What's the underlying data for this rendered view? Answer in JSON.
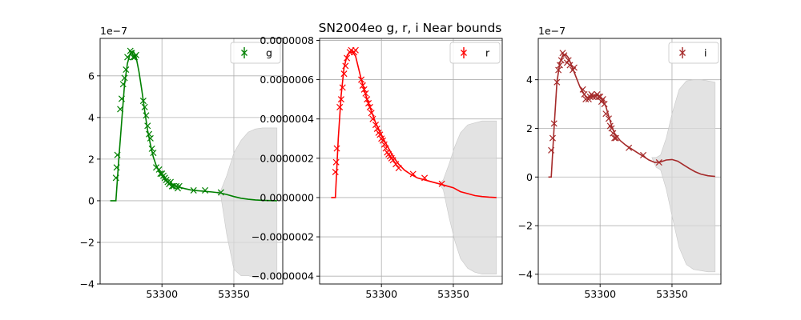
{
  "title": "SN2004eo  g, r, i Near bounds",
  "chart_data": [
    {
      "type": "line",
      "band": "g",
      "color": "#008000",
      "band_fill": "#d9d9d9",
      "offset_label": "1e−7",
      "xlim": [
        53257,
        53384
      ],
      "ylim": [
        -4,
        7.8
      ],
      "xticks": [
        53300,
        53350
      ],
      "yticks": [
        -4,
        -2,
        0,
        2,
        4,
        6
      ],
      "ytick_labels": [
        "−4",
        "−2",
        "0",
        "2",
        "4",
        "6"
      ],
      "grid": true,
      "legend": {
        "label": "g",
        "placement": "top-right"
      },
      "observations": {
        "x": [
          53268,
          53268.5,
          53269,
          53271,
          53272,
          53273,
          53274,
          53275,
          53276,
          53278,
          53279,
          53280,
          53281,
          53282,
          53287,
          53288,
          53289,
          53290,
          53291,
          53292,
          53293,
          53294,
          53296,
          53298,
          53299,
          53300,
          53301,
          53302,
          53303,
          53304,
          53305,
          53306,
          53307,
          53308,
          53310,
          53311,
          53312,
          53322,
          53330,
          53341
        ],
        "y": [
          1.1,
          1.6,
          2.2,
          4.4,
          4.9,
          5.6,
          5.9,
          6.3,
          6.9,
          7.2,
          7.1,
          6.9,
          6.9,
          7.0,
          4.8,
          4.5,
          4.1,
          3.6,
          3.2,
          3.0,
          2.5,
          2.3,
          1.6,
          1.5,
          1.3,
          1.3,
          1.2,
          1.1,
          1.0,
          0.9,
          0.8,
          0.9,
          0.7,
          0.7,
          0.7,
          0.6,
          0.7,
          0.5,
          0.5,
          0.4
        ]
      },
      "model": {
        "x": [
          53264,
          53268,
          53270,
          53272,
          53274,
          53276,
          53278,
          53280,
          53282,
          53284,
          53286,
          53288,
          53290,
          53292,
          53294,
          53296,
          53298,
          53300,
          53302,
          53305,
          53308,
          53312,
          53316,
          53320,
          53325,
          53330,
          53335,
          53340,
          53345,
          53350,
          53355,
          53360,
          53365,
          53370,
          53375,
          53380
        ],
        "y": [
          0,
          0,
          2.0,
          3.8,
          5.6,
          6.6,
          7.1,
          7.2,
          6.9,
          6.2,
          5.3,
          4.3,
          3.4,
          2.7,
          2.1,
          1.7,
          1.4,
          1.2,
          1.0,
          0.85,
          0.75,
          0.65,
          0.58,
          0.52,
          0.48,
          0.45,
          0.42,
          0.38,
          0.3,
          0.2,
          0.12,
          0.07,
          0.04,
          0.02,
          0.01,
          0.0
        ]
      },
      "uncertainty": {
        "x": [
          53338,
          53341,
          53345,
          53350,
          53355,
          53360,
          53365,
          53370,
          53375,
          53380
        ],
        "upper": [
          0.4,
          0.5,
          1.2,
          2.3,
          2.9,
          3.3,
          3.45,
          3.5,
          3.5,
          3.5
        ],
        "lower": [
          0.4,
          0.2,
          -1.6,
          -3.3,
          -3.6,
          -3.6,
          -3.7,
          -3.7,
          -3.7,
          -3.7
        ]
      }
    },
    {
      "type": "line",
      "band": "r",
      "color": "#ff0000",
      "band_fill": "#d9d9d9",
      "offset_label": "",
      "xlim": [
        53257,
        53384
      ],
      "ylim": [
        -4.4e-07,
        8.1e-07
      ],
      "xticks": [
        53300,
        53350
      ],
      "yticks": [
        -4e-07,
        -2e-07,
        0,
        2e-07,
        4e-07,
        6e-07,
        8e-07
      ],
      "ytick_labels": [
        "−0.0000004",
        "−0.0000002",
        "0.0000000",
        "0.0000002",
        "0.0000004",
        "0.0000006",
        "0.0000008"
      ],
      "grid": true,
      "legend": {
        "label": "r",
        "placement": "top-right"
      },
      "observations": {
        "x": [
          53268,
          53268.5,
          53269,
          53271,
          53272,
          53273,
          53274,
          53275,
          53276,
          53278,
          53279,
          53281,
          53282,
          53286,
          53287,
          53288,
          53289,
          53290,
          53291,
          53292,
          53293,
          53294,
          53296,
          53297,
          53298,
          53299,
          53300,
          53301,
          53302,
          53303,
          53304,
          53305,
          53306,
          53307,
          53308,
          53310,
          53312,
          53322,
          53330,
          53342
        ],
        "y": [
          1.3e-07,
          1.8e-07,
          2.5e-07,
          4.6e-07,
          5e-07,
          5.6e-07,
          6.3e-07,
          6.7e-07,
          7.1e-07,
          7.4e-07,
          7.5e-07,
          7.4e-07,
          7.5e-07,
          6e-07,
          5.7e-07,
          5.5e-07,
          5.3e-07,
          5e-07,
          4.8e-07,
          4.6e-07,
          4.3e-07,
          4e-07,
          3.7e-07,
          3.5e-07,
          3.3e-07,
          3.2e-07,
          3e-07,
          2.9e-07,
          2.7e-07,
          2.5e-07,
          2.3e-07,
          2.2e-07,
          2.1e-07,
          2e-07,
          1.9e-07,
          1.7e-07,
          1.5e-07,
          1.2e-07,
          1e-07,
          7e-08
        ]
      },
      "model": {
        "x": [
          53265,
          53268,
          53270,
          53272,
          53274,
          53276,
          53278,
          53280,
          53282,
          53284,
          53286,
          53288,
          53290,
          53292,
          53294,
          53296,
          53298,
          53300,
          53302,
          53305,
          53308,
          53312,
          53316,
          53320,
          53325,
          53330,
          53335,
          53340,
          53345,
          53350,
          53355,
          53360,
          53365,
          53370,
          53375,
          53380
        ],
        "y": [
          0,
          0,
          3e-07,
          5.2e-07,
          6.6e-07,
          7.2e-07,
          7.4e-07,
          7.4e-07,
          7.2e-07,
          6.6e-07,
          6e-07,
          5.5e-07,
          5e-07,
          4.6e-07,
          4.2e-07,
          3.8e-07,
          3.5e-07,
          3.2e-07,
          2.9e-07,
          2.5e-07,
          2.1e-07,
          1.7e-07,
          1.4e-07,
          1.2e-07,
          1e-07,
          9e-08,
          8e-08,
          7e-08,
          6e-08,
          5e-08,
          3e-08,
          2e-08,
          1e-08,
          5e-09,
          2e-09,
          0.0
        ]
      },
      "uncertainty": {
        "x": [
          53340,
          53343,
          53347,
          53351,
          53355,
          53360,
          53365,
          53370,
          53375,
          53380
        ],
        "upper": [
          7e-08,
          9e-08,
          1.7e-07,
          2.6e-07,
          3.3e-07,
          3.7e-07,
          3.8e-07,
          3.9e-07,
          3.9e-07,
          3.9e-07
        ],
        "lower": [
          7e-08,
          4e-08,
          -1e-07,
          -2.2e-07,
          -3.1e-07,
          -3.6e-07,
          -3.8e-07,
          -3.9e-07,
          -3.9e-07,
          -3.9e-07
        ]
      }
    },
    {
      "type": "line",
      "band": "i",
      "color": "#a52a2a",
      "band_fill": "#d9d9d9",
      "offset_label": "1e−7",
      "xlim": [
        53257,
        53384
      ],
      "ylim": [
        -4.4,
        5.7
      ],
      "xticks": [
        53300,
        53350
      ],
      "yticks": [
        -4,
        -2,
        0,
        2,
        4
      ],
      "ytick_labels": [
        "−4",
        "−2",
        "0",
        "2",
        "4"
      ],
      "grid": true,
      "legend": {
        "label": "i",
        "placement": "top-right"
      },
      "observations": {
        "x": [
          53266,
          53267,
          53268,
          53270,
          53271,
          53272,
          53273,
          53274,
          53275,
          53277,
          53278,
          53279,
          53281,
          53282,
          53288,
          53289,
          53290,
          53292,
          53293,
          53294,
          53295,
          53297,
          53298,
          53299,
          53300,
          53301,
          53302,
          53303,
          53304,
          53306,
          53307,
          53308,
          53309,
          53310,
          53311,
          53320,
          53330,
          53341
        ],
        "y": [
          1.1,
          1.6,
          2.2,
          3.9,
          4.4,
          4.6,
          4.8,
          5.1,
          5.0,
          4.7,
          4.8,
          4.6,
          4.4,
          4.5,
          3.6,
          3.4,
          3.2,
          3.2,
          3.3,
          3.4,
          3.3,
          3.3,
          3.4,
          3.3,
          3.3,
          3.1,
          3.2,
          3.0,
          2.6,
          2.4,
          2.1,
          2.0,
          1.8,
          1.6,
          1.6,
          1.2,
          0.9,
          0.6
        ]
      },
      "model": {
        "x": [
          53264,
          53266,
          53268,
          53270,
          53272,
          53274,
          53276,
          53278,
          53280,
          53282,
          53284,
          53286,
          53288,
          53290,
          53292,
          53294,
          53296,
          53298,
          53300,
          53302,
          53304,
          53306,
          53308,
          53310,
          53314,
          53318,
          53322,
          53326,
          53330,
          53334,
          53338,
          53342,
          53346,
          53350,
          53354,
          53358,
          53362,
          53366,
          53370,
          53375,
          53380
        ],
        "y": [
          0,
          0,
          2.0,
          3.9,
          4.7,
          5.0,
          5.05,
          4.9,
          4.6,
          4.3,
          4.0,
          3.7,
          3.5,
          3.3,
          3.25,
          3.3,
          3.35,
          3.35,
          3.3,
          3.15,
          2.9,
          2.5,
          2.1,
          1.8,
          1.5,
          1.3,
          1.15,
          1.0,
          0.85,
          0.7,
          0.6,
          0.62,
          0.7,
          0.72,
          0.65,
          0.5,
          0.35,
          0.22,
          0.12,
          0.05,
          0.02
        ]
      },
      "uncertainty": {
        "x": [
          53336,
          53339,
          53342,
          53346,
          53350,
          53355,
          53360,
          53365,
          53370,
          53375,
          53380
        ],
        "upper": [
          0.8,
          0.8,
          0.9,
          1.6,
          2.6,
          3.6,
          3.95,
          4.0,
          4.0,
          3.95,
          3.9
        ],
        "lower": [
          0.8,
          0.4,
          0.3,
          -0.5,
          -1.6,
          -2.9,
          -3.6,
          -3.8,
          -3.85,
          -3.9,
          -3.9
        ]
      }
    }
  ]
}
